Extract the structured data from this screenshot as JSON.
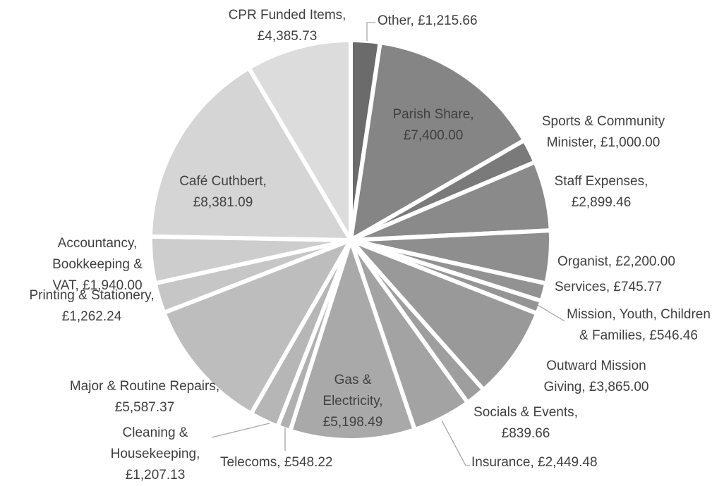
{
  "chart_data": {
    "type": "pie",
    "categories": [
      "Other,",
      "Parish Share,",
      "Sports & Community Minister,",
      "Staff Expenses,",
      "Organist,",
      "Services,",
      "Mission, Youth, Children & Families,",
      "Outward Mission Giving,",
      "Socials & Events,",
      "Insurance,",
      "Gas & Electricity,",
      "Telecoms,",
      "Cleaning & Housekeeping,",
      "Major & Routine Repairs,",
      "Printing & Stationery,",
      "Accountancy, Bookkeeping & VAT,",
      "Café Cuthbert,",
      "CPR Funded Items,"
    ],
    "values": [
      1215.66,
      7400,
      1000,
      2899.46,
      2200,
      745.77,
      546.46,
      3865,
      839.66,
      2449.48,
      5198.49,
      548.22,
      1207.13,
      5587.37,
      1262.24,
      1940,
      8381.09,
      4385.73
    ],
    "value_labels": [
      "£1,215.66",
      "£7,400.00",
      "£1,000.00",
      "£2,899.46",
      "£2,200.00",
      "£745.77",
      "£546.46",
      "£3,865.00",
      "£839.66",
      "£2,449.48",
      "£5,198.49",
      "£548.22",
      "£1,207.13",
      "£5,587.37",
      "£1,262.24",
      "£1,940.00",
      "£8,381.09",
      "£4,385.73"
    ],
    "colors": [
      "#6b6b6b",
      "#858585",
      "#7a7a7a",
      "#8a8a8a",
      "#8e8e8e",
      "#929292",
      "#959595",
      "#999999",
      "#9e9e9e",
      "#a3a3a3",
      "#a9a9a9",
      "#b0b0b0",
      "#b6b6b6",
      "#bdbdbd",
      "#c6c6c6",
      "#cdcdcd",
      "#d5d5d5",
      "#dcdcdc"
    ]
  }
}
